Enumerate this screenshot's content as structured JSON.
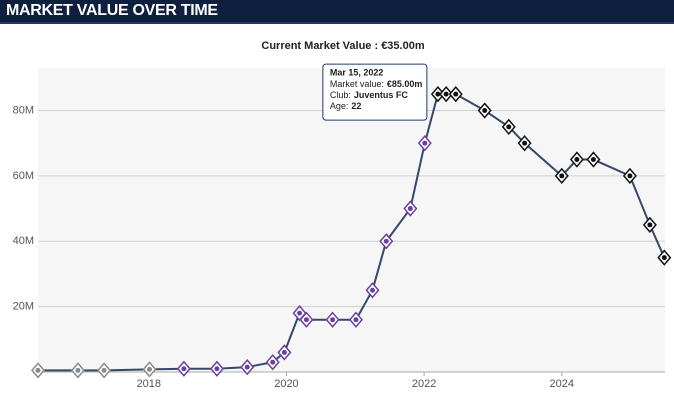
{
  "chart_data": {
    "type": "line",
    "title": "MARKET VALUE OVER TIME",
    "subtitle": "Current Market Value : €35.00m",
    "x": [
      2016.39,
      2016.97,
      2017.35,
      2018.01,
      2018.51,
      2018.99,
      2019.43,
      2019.8,
      2019.97,
      2020.19,
      2020.29,
      2020.67,
      2021.01,
      2021.25,
      2021.45,
      2021.8,
      2022.01,
      2022.2,
      2022.32,
      2022.46,
      2022.88,
      2023.23,
      2023.46,
      2024.0,
      2024.22,
      2024.46,
      2024.99,
      2025.28,
      2025.49
    ],
    "series": [
      {
        "color": "#34496a",
        "values": [
          0.5,
          0.5,
          0.5,
          0.8,
          1,
          1,
          1.5,
          3,
          6,
          18,
          16,
          16,
          16,
          25,
          40,
          50,
          70,
          85,
          85,
          85,
          80,
          75,
          70,
          60,
          65,
          65,
          60,
          45,
          35
        ],
        "marker_colors": [
          "#8a8a8a",
          "#8a8a8a",
          "#8a8a8a",
          "#8a8a8a",
          "#6b3fa0",
          "#6b3fa0",
          "#6b3fa0",
          "#6b3fa0",
          "#6b3fa0",
          "#6b3fa0",
          "#6b3fa0",
          "#6b3fa0",
          "#6b3fa0",
          "#6b3fa0",
          "#6b3fa0",
          "#6b3fa0",
          "#6b3fa0",
          "#111111",
          "#111111",
          "#111111",
          "#111111",
          "#111111",
          "#111111",
          "#111111",
          "#111111",
          "#111111",
          "#111111",
          "#111111",
          "#111111"
        ]
      }
    ],
    "xlim": [
      2016.39,
      2025.5
    ],
    "xticks": [
      2018,
      2020,
      2022,
      2024
    ],
    "ylim": [
      0,
      93
    ],
    "yticks": [
      {
        "value": 20,
        "label": "20M"
      },
      {
        "value": 40,
        "label": "40M"
      },
      {
        "value": 60,
        "label": "60M"
      },
      {
        "value": 80,
        "label": "80M"
      }
    ],
    "grid": true,
    "tooltip": {
      "point": 17,
      "date": "Mar 15, 2022",
      "lines": [
        {
          "label": "Market value:",
          "value": "€85.00m"
        },
        {
          "label": "Club:",
          "value": "Juventus FC"
        },
        {
          "label": "Age:",
          "value": "22"
        }
      ]
    }
  }
}
